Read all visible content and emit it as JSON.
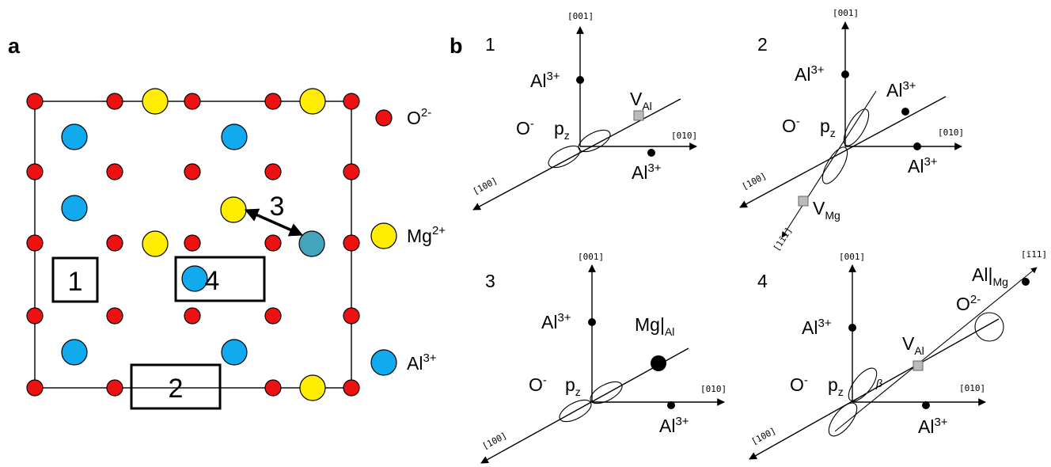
{
  "panel_a": {
    "letter": "a",
    "legend": {
      "o_ion": "O",
      "o_ion_sup": "2-",
      "mg_ion": "Mg",
      "mg_ion_sup": "2+",
      "al_ion": "Al",
      "al_ion_sup": "3+"
    },
    "site_boxes": [
      "1",
      "2",
      "4"
    ],
    "hop_label": "3",
    "colors": {
      "oxygen": "#ee1111",
      "magnesium": "#ffee00",
      "aluminium": "#11aaee",
      "aluminium_hop": "#44a3bd"
    }
  },
  "panel_b": {
    "letter": "b",
    "sub_numbers": [
      "1",
      "2",
      "3",
      "4"
    ],
    "directions": {
      "d001": "[001]",
      "d010": "[010]",
      "d100": "[100]",
      "d1m1m1": "[1īī]",
      "dm111": "[ī11]"
    },
    "labels": {
      "al": "Al",
      "al_sup": "3+",
      "o_minus": "O",
      "o_minus_sup": "-",
      "pz": "p",
      "pz_sub": "z",
      "v": "V",
      "v_al_sub": "Al",
      "v_mg_sub": "Mg",
      "mg_al": "Mg|",
      "mg_al_sub": "Al",
      "al_mg": "Al|",
      "al_mg_sub": "Mg",
      "o2": "O",
      "o2_sup": "2-",
      "beta": "β"
    }
  }
}
